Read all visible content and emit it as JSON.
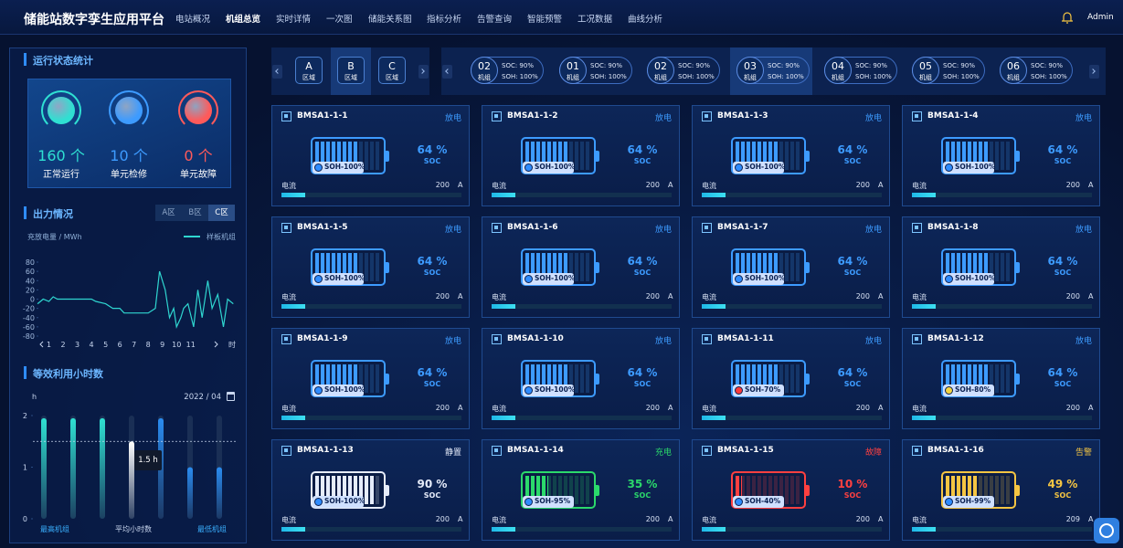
{
  "header": {
    "title": "储能站数字孪生应用平台",
    "nav": [
      "电站概况",
      "机组总览",
      "实时详情",
      "一次图",
      "储能关系图",
      "指标分析",
      "告警查询",
      "智能预警",
      "工况数据",
      "曲线分析"
    ],
    "active_nav": 1,
    "user": "Admin"
  },
  "status": {
    "title": "运行状态统计",
    "items": [
      {
        "value": "160",
        "unit": "个",
        "label": "正常运行",
        "color": "#2fe0d2"
      },
      {
        "value": "10",
        "unit": "个",
        "label": "单元检修",
        "color": "#3d9bff"
      },
      {
        "value": "0",
        "unit": "个",
        "label": "单元故障",
        "color": "#ff5a5a"
      }
    ]
  },
  "output": {
    "title": "出力情况",
    "tabs": [
      "A区",
      "B区",
      "C区"
    ],
    "active_tab": 2
  },
  "output_chart": {
    "type": "line",
    "y_label": "充放电量 / MWh",
    "legend": "样板机组",
    "color": "#2fd6d0",
    "x_unit": "时",
    "x": [
      0.2,
      0.6,
      1,
      1.3,
      1.6,
      4,
      4.3,
      5,
      5.5,
      6,
      6.3,
      8,
      8.5,
      8.8,
      9.2,
      9.5,
      9.8,
      10,
      10.3,
      10.5,
      10.8,
      11.2,
      11.5,
      11.8,
      12.2,
      12.5,
      12.9,
      13.3,
      13.6,
      14
    ],
    "values": [
      -10,
      0,
      -5,
      5,
      0,
      0,
      -5,
      -10,
      -20,
      -20,
      -30,
      -30,
      -20,
      60,
      20,
      -40,
      -20,
      -60,
      -40,
      -20,
      -10,
      -60,
      20,
      -40,
      40,
      -20,
      10,
      -60,
      0,
      -10
    ],
    "xlim": [
      0,
      14.3
    ],
    "ylim": [
      -80,
      80
    ],
    "xticks": [
      1,
      2,
      3,
      4,
      5,
      6,
      7,
      8,
      9,
      10,
      11
    ],
    "yticks": [
      -80,
      -60,
      -40,
      -20,
      0,
      20,
      40,
      60,
      80
    ]
  },
  "hours": {
    "title": "等效利用小时数",
    "y_label": "h",
    "date": "2022 / 04",
    "ylim": [
      0,
      2
    ],
    "yticks": [
      0,
      1,
      2
    ],
    "values": [
      1.95,
      1.95,
      1.95,
      1.5,
      1.95,
      1.0,
      1.0
    ],
    "colors": [
      "#2fe0d2",
      "#2fe0d2",
      "#2fe0d2",
      "#ffffff",
      "#2a8cf0",
      "#2a8cf0",
      "#2a8cf0"
    ],
    "average": 1.5,
    "tooltip": "1.5 h",
    "labels": [
      "最高机组",
      "平均小时数",
      "最低机组"
    ]
  },
  "areas": {
    "selected": 1,
    "items": [
      {
        "code": "A",
        "label": "区域"
      },
      {
        "code": "B",
        "label": "区域"
      },
      {
        "code": "C",
        "label": "区域"
      }
    ]
  },
  "units": {
    "selected": 3,
    "items": [
      {
        "code": "02",
        "label": "机组",
        "soc": "SOC: 90%",
        "soh": "SOH: 100%"
      },
      {
        "code": "01",
        "label": "机组",
        "soc": "SOC: 90%",
        "soh": "SOH: 100%"
      },
      {
        "code": "02",
        "label": "机组",
        "soc": "SOC: 90%",
        "soh": "SOH: 100%"
      },
      {
        "code": "03",
        "label": "机组",
        "soc": "SOC: 90%",
        "soh": "SOH: 100%"
      },
      {
        "code": "04",
        "label": "机组",
        "soc": "SOC: 90%",
        "soh": "SOH: 100%"
      },
      {
        "code": "05",
        "label": "机组",
        "soc": "SOC: 90%",
        "soh": "SOH: 100%"
      },
      {
        "code": "06",
        "label": "机组",
        "soc": "SOC: 90%",
        "soh": "SOH: 100%"
      }
    ]
  },
  "card_labels": {
    "soc": "SOC",
    "current": "电流",
    "unit": "A"
  },
  "status_colors": {
    "放电": "#3d9bff",
    "静置": "#e6ecfa",
    "充电": "#2bd96b",
    "故障": "#ff4040",
    "告警": "#f5c542"
  },
  "cards": [
    {
      "name": "BMSA1-1-1",
      "status": "放电",
      "soc": 64,
      "soc_label": "64 %",
      "soh": "SOH-100%",
      "soh_dot": "#2f8cff",
      "current": "200"
    },
    {
      "name": "BMSA1-1-2",
      "status": "放电",
      "soc": 64,
      "soc_label": "64 %",
      "soh": "SOH-100%",
      "soh_dot": "#2f8cff",
      "current": "200"
    },
    {
      "name": "BMSA1-1-3",
      "status": "放电",
      "soc": 64,
      "soc_label": "64 %",
      "soh": "SOH-100%",
      "soh_dot": "#2f8cff",
      "current": "200"
    },
    {
      "name": "BMSA1-1-4",
      "status": "放电",
      "soc": 64,
      "soc_label": "64 %",
      "soh": "SOH-100%",
      "soh_dot": "#2f8cff",
      "current": "200"
    },
    {
      "name": "BMSA1-1-5",
      "status": "放电",
      "soc": 64,
      "soc_label": "64 %",
      "soh": "SOH-100%",
      "soh_dot": "#2f8cff",
      "current": "200"
    },
    {
      "name": "BMSA1-1-6",
      "status": "放电",
      "soc": 64,
      "soc_label": "64 %",
      "soh": "SOH-100%",
      "soh_dot": "#2f8cff",
      "current": "200"
    },
    {
      "name": "BMSA1-1-7",
      "status": "放电",
      "soc": 64,
      "soc_label": "64 %",
      "soh": "SOH-100%",
      "soh_dot": "#2f8cff",
      "current": "200"
    },
    {
      "name": "BMSA1-1-8",
      "status": "放电",
      "soc": 64,
      "soc_label": "64 %",
      "soh": "SOH-100%",
      "soh_dot": "#2f8cff",
      "current": "200"
    },
    {
      "name": "BMSA1-1-9",
      "status": "放电",
      "soc": 64,
      "soc_label": "64 %",
      "soh": "SOH-100%",
      "soh_dot": "#2f8cff",
      "current": "200"
    },
    {
      "name": "BMSA1-1-10",
      "status": "放电",
      "soc": 64,
      "soc_label": "64 %",
      "soh": "SOH-100%",
      "soh_dot": "#2f8cff",
      "current": "200"
    },
    {
      "name": "BMSA1-1-11",
      "status": "放电",
      "soc": 64,
      "soc_label": "64 %",
      "soh": "SOH-70%",
      "soh_dot": "#ff3b3b",
      "current": "200"
    },
    {
      "name": "BMSA1-1-12",
      "status": "放电",
      "soc": 64,
      "soc_label": "64 %",
      "soh": "SOH-80%",
      "soh_dot": "#f5d442",
      "current": "200"
    },
    {
      "name": "BMSA1-1-13",
      "status": "静置",
      "soc": 90,
      "soc_label": "90 %",
      "soh": "SOH-100%",
      "soh_dot": "#2f8cff",
      "current": "200"
    },
    {
      "name": "BMSA1-1-14",
      "status": "充电",
      "soc": 35,
      "soc_label": "35 %",
      "soh": "SOH-95%",
      "soh_dot": "#2f8cff",
      "current": "200"
    },
    {
      "name": "BMSA1-1-15",
      "status": "故障",
      "soc": 10,
      "soc_label": "10 %",
      "soh": "SOH-40%",
      "soh_dot": "#2f8cff",
      "current": "200"
    },
    {
      "name": "BMSA1-1-16",
      "status": "告警",
      "soc": 49,
      "soc_label": "49 %",
      "soh": "SOH-99%",
      "soh_dot": "#2f8cff",
      "current": "209"
    }
  ]
}
